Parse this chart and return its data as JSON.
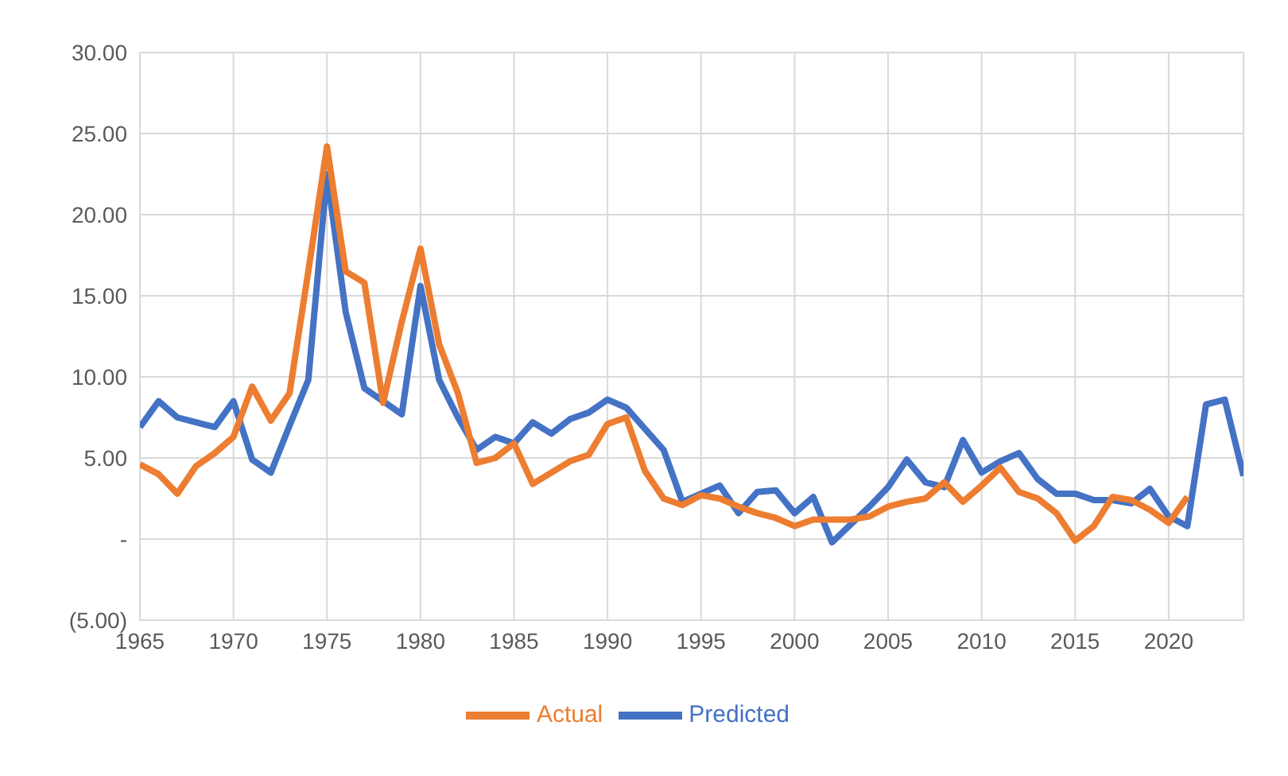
{
  "chart_data": {
    "type": "line",
    "x": [
      1965,
      1966,
      1967,
      1968,
      1969,
      1970,
      1971,
      1972,
      1973,
      1974,
      1975,
      1976,
      1977,
      1978,
      1979,
      1980,
      1981,
      1982,
      1983,
      1984,
      1985,
      1986,
      1987,
      1988,
      1989,
      1990,
      1991,
      1992,
      1993,
      1994,
      1995,
      1996,
      1997,
      1998,
      1999,
      2000,
      2001,
      2002,
      2003,
      2004,
      2005,
      2006,
      2007,
      2008,
      2009,
      2010,
      2011,
      2012,
      2013,
      2014,
      2015,
      2016,
      2017,
      2018,
      2019,
      2020,
      2021,
      2022,
      2023,
      2024
    ],
    "series": [
      {
        "name": "Predicted",
        "color": "#4472c4",
        "values": [
          6.9,
          8.5,
          7.5,
          7.2,
          6.9,
          8.5,
          4.9,
          4.1,
          7.0,
          9.8,
          22.5,
          14.0,
          9.3,
          8.5,
          7.7,
          15.6,
          9.8,
          7.5,
          5.5,
          6.3,
          5.9,
          7.2,
          6.5,
          7.4,
          7.8,
          8.6,
          8.1,
          6.8,
          5.5,
          2.3,
          2.8,
          3.3,
          1.6,
          2.9,
          3.0,
          1.6,
          2.6,
          -0.2,
          0.9,
          2.0,
          3.2,
          4.9,
          3.5,
          3.2,
          6.1,
          4.1,
          4.8,
          5.3,
          3.7,
          2.8,
          2.8,
          2.4,
          2.4,
          2.2,
          3.1,
          1.4,
          0.8,
          8.3,
          8.6,
          3.9
        ]
      },
      {
        "name": "Actual",
        "color": "#ed7d31",
        "values": [
          4.6,
          4.0,
          2.8,
          4.5,
          5.3,
          6.3,
          9.4,
          7.3,
          9.0,
          16.5,
          24.2,
          16.5,
          15.8,
          8.4,
          13.4,
          17.9,
          12.0,
          9.0,
          4.7,
          5.0,
          5.9,
          3.4,
          4.1,
          4.8,
          5.2,
          7.1,
          7.5,
          4.2,
          2.5,
          2.1,
          2.7,
          2.5,
          2.0,
          1.6,
          1.3,
          0.8,
          1.2,
          1.2,
          1.2,
          1.4,
          2.0,
          2.3,
          2.5,
          3.5,
          2.3,
          3.3,
          4.4,
          2.9,
          2.5,
          1.6,
          -0.1,
          0.8,
          2.6,
          2.4,
          1.8,
          1.0,
          2.6,
          null,
          null,
          null
        ]
      }
    ],
    "xlim": [
      1965,
      2024
    ],
    "xticks": [
      1965,
      1970,
      1975,
      1980,
      1985,
      1990,
      1995,
      2000,
      2005,
      2010,
      2015,
      2020
    ],
    "ylim": [
      -5,
      30
    ],
    "yticks": [
      {
        "value": -5,
        "label": "(5.00)"
      },
      {
        "value": 0,
        "label": "-"
      },
      {
        "value": 5,
        "label": "5.00"
      },
      {
        "value": 10,
        "label": "10.00"
      },
      {
        "value": 15,
        "label": "15.00"
      },
      {
        "value": 20,
        "label": "20.00"
      },
      {
        "value": 25,
        "label": "25.00"
      },
      {
        "value": 30,
        "label": "30.00"
      }
    ],
    "grid": true,
    "legend": "bottom",
    "marker": "none",
    "line_style": "solid"
  }
}
